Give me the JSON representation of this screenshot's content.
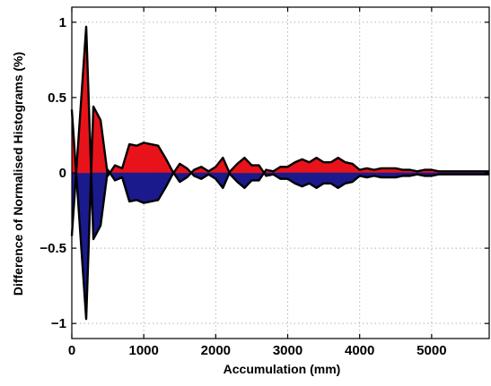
{
  "chart_data": {
    "type": "area",
    "xlabel": "Accumulation (mm)",
    "ylabel": "Difference of Normalised Histograms (%)",
    "xlim": [
      0,
      5800
    ],
    "ylim": [
      -1.1,
      1.1
    ],
    "x_ticks": [
      0,
      1000,
      2000,
      3000,
      4000,
      5000
    ],
    "y_ticks": [
      -1,
      -0.5,
      0,
      0.5,
      1
    ],
    "x_tick_labels": [
      "0",
      "1000",
      "2000",
      "3000",
      "4000",
      "5000"
    ],
    "y_tick_labels": [
      "−1",
      "−0.5",
      "0",
      "0.5",
      "1"
    ],
    "grid": true,
    "colors": {
      "upper_positive": "#e8131a",
      "upper_negative": "#1a1a8c",
      "outline": "#000000"
    },
    "series": [
      {
        "x": [
          0,
          200,
          300,
          400,
          500,
          600,
          700,
          800,
          900,
          1000,
          1100,
          1200,
          1300,
          1400,
          1500,
          1600,
          1700,
          1800,
          1900,
          2000,
          2100,
          2200,
          2300,
          2400,
          2500,
          2600,
          2700,
          2800,
          2900,
          3000,
          3100,
          3200,
          3300,
          3400,
          3500,
          3600,
          3700,
          3800,
          3900,
          4000,
          4100,
          4200,
          4300,
          4400,
          4500,
          4600,
          4700,
          4800,
          4900,
          5000,
          5100,
          5200,
          5300,
          5400,
          5500,
          5600,
          5700,
          5800
        ],
        "y": [
          0.42,
          -0.97,
          0.44,
          0.35,
          -0.02,
          0.05,
          0.03,
          0.19,
          0.18,
          0.2,
          0.19,
          0.18,
          0.1,
          0.01,
          -0.06,
          -0.03,
          0.02,
          0.04,
          0.01,
          0.04,
          0.1,
          -0.01,
          -0.06,
          -0.1,
          -0.05,
          -0.05,
          0.02,
          0.01,
          0.04,
          0.04,
          0.07,
          0.09,
          0.07,
          0.1,
          0.07,
          0.07,
          0.1,
          0.07,
          0.06,
          0.02,
          0.03,
          0.02,
          0.03,
          0.03,
          0.03,
          0.02,
          0.02,
          0.01,
          0.02,
          0.02,
          0.01,
          0.01,
          0.01,
          0.01,
          0.01,
          0.01,
          0.01,
          0.01
        ]
      }
    ]
  }
}
